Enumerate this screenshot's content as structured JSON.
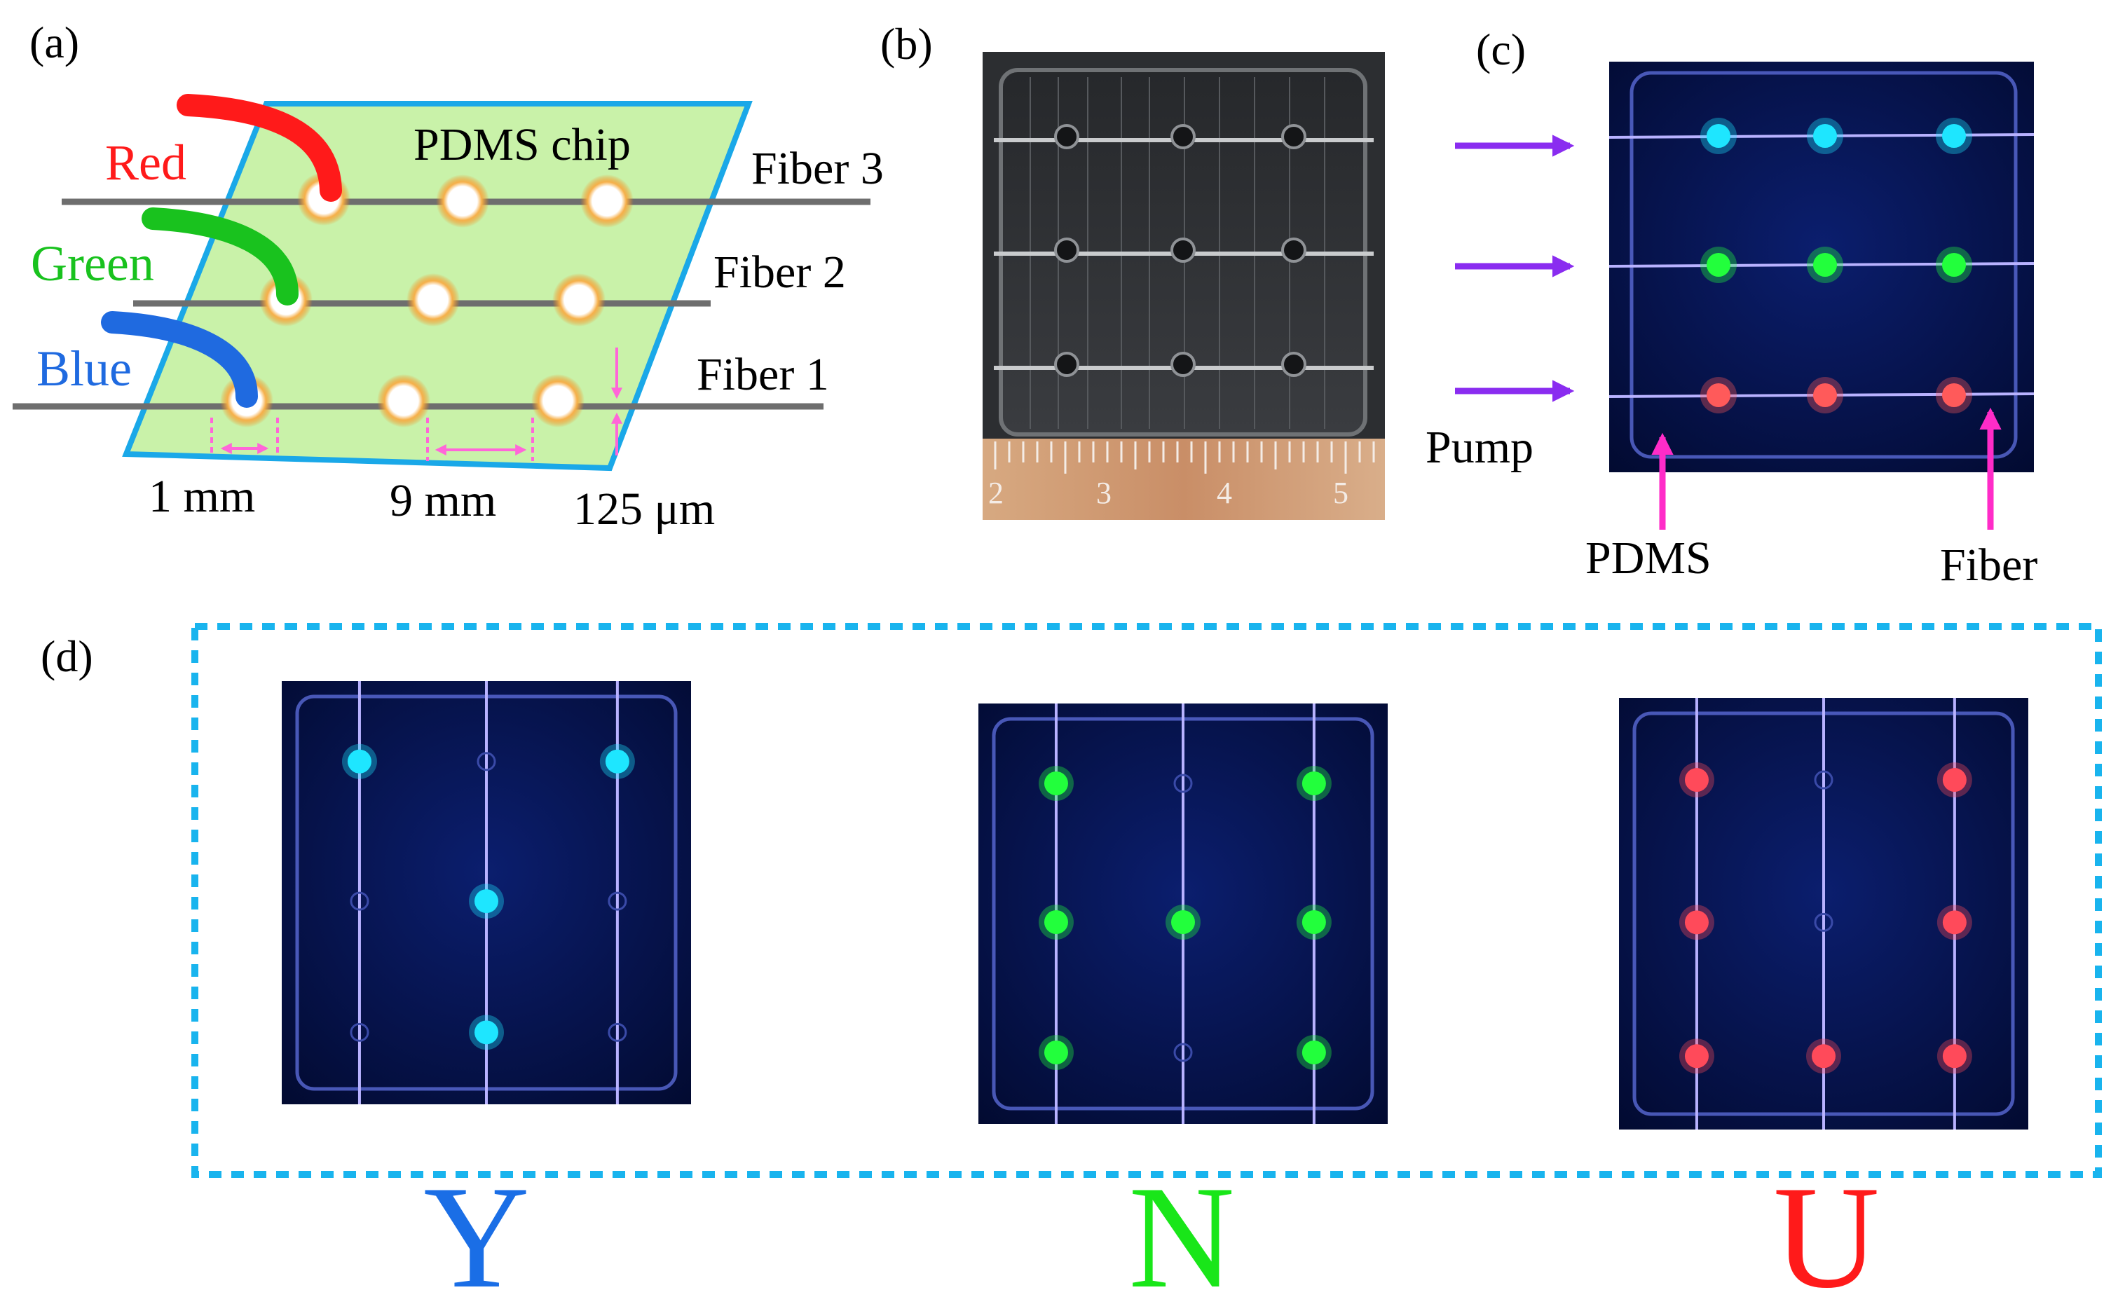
{
  "figure": {
    "panel_a": {
      "label": "(a)",
      "chip_label": "PDMS chip",
      "fibers": [
        {
          "label": "Fiber 3",
          "dye": "Red",
          "dye_color": "#ff1a1a"
        },
        {
          "label": "Fiber 2",
          "dye": "Green",
          "dye_color": "#19c21e"
        },
        {
          "label": "Fiber 1",
          "dye": "Blue",
          "dye_color": "#1f6ae0"
        }
      ],
      "dimensions": {
        "hole": "1 mm",
        "spacing": "9 mm",
        "fiber": "125 μm"
      },
      "colors": {
        "chip_fill": "#c9f2a9",
        "chip_border": "#1aa8e8",
        "fiber_line": "#6e6e6e",
        "hole_glow": "#f08a1a",
        "dimension_marks": "#ff66d8"
      }
    },
    "panel_b": {
      "label": "(b)",
      "ruler_numbers": [
        "2",
        "3",
        "4",
        "5"
      ]
    },
    "panel_c": {
      "label": "(c)",
      "pump_label": "Pump",
      "pdms_label": "PDMS",
      "fiber_label": "Fiber",
      "rows": [
        {
          "color": "#1ee6ff"
        },
        {
          "color": "#22ff3c"
        },
        {
          "color": "#ff5a5a"
        }
      ],
      "colors": {
        "pump_arrow": "#8a2cf0",
        "pointer_arrow": "#ff2cc8"
      }
    },
    "panel_d": {
      "label": "(d)",
      "frame_color": "#19b4ee",
      "letters": [
        {
          "letter": "Y",
          "color": "#1a6ee6",
          "spot_color": "#1ee6ff",
          "pattern": [
            [
              1,
              0,
              1
            ],
            [
              0,
              1,
              0
            ],
            [
              0,
              1,
              0
            ]
          ]
        },
        {
          "letter": "N",
          "color": "#19e619",
          "spot_color": "#22ff3c",
          "pattern": [
            [
              1,
              0,
              1
            ],
            [
              1,
              1,
              1
            ],
            [
              1,
              0,
              1
            ]
          ]
        },
        {
          "letter": "U",
          "color": "#ff1a1a",
          "spot_color": "#ff4a5a",
          "pattern": [
            [
              1,
              0,
              1
            ],
            [
              1,
              0,
              1
            ],
            [
              1,
              1,
              1
            ]
          ]
        }
      ]
    }
  }
}
